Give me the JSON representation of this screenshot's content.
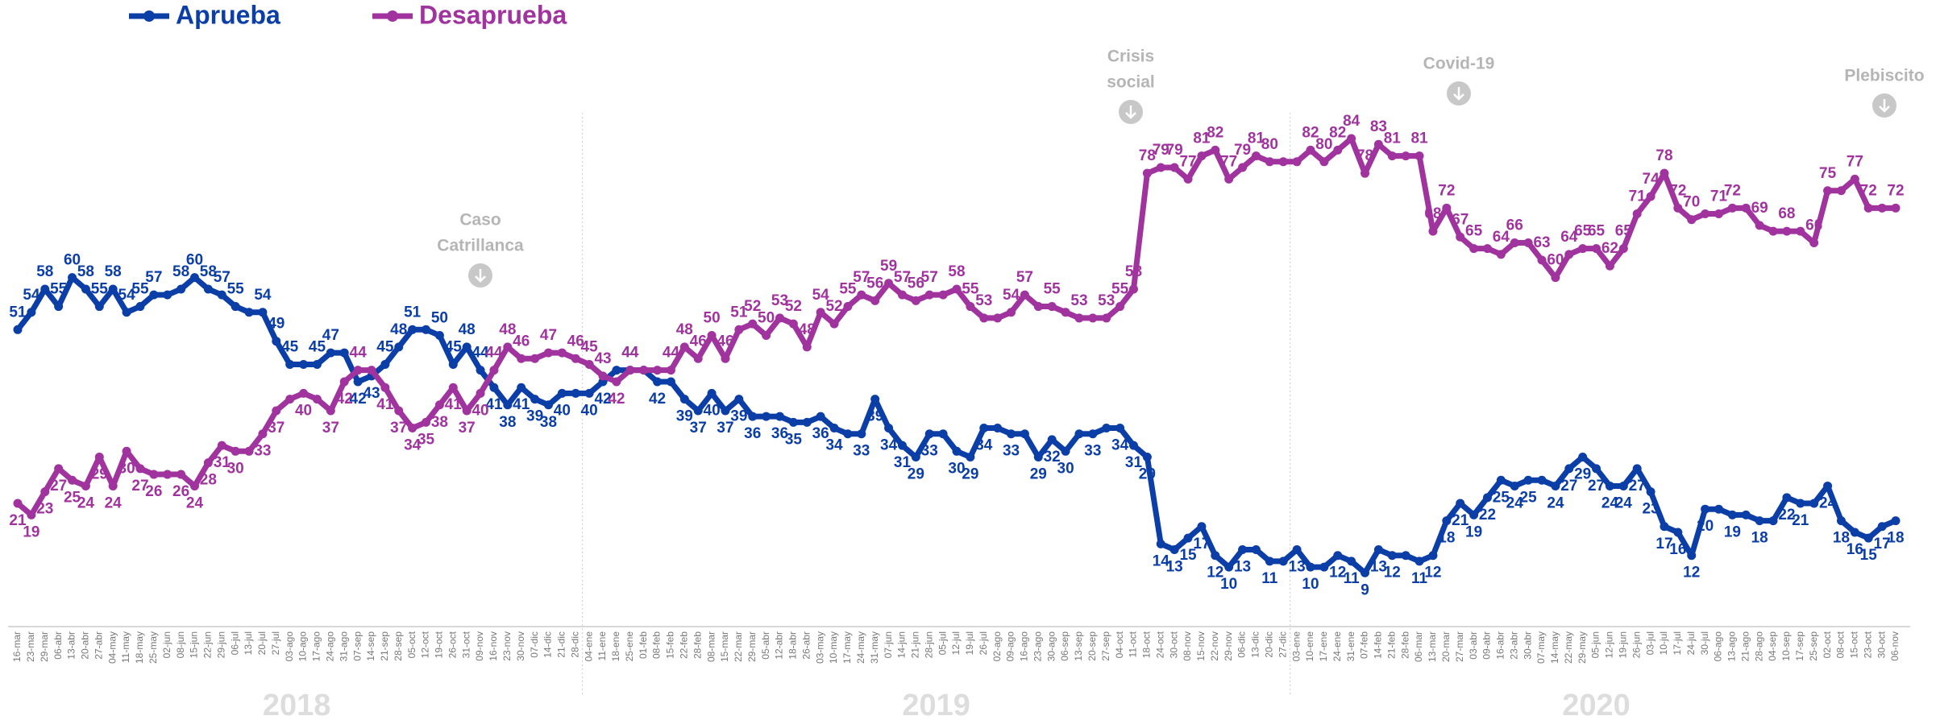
{
  "chart_data": {
    "type": "line",
    "categories": [
      "16-mar",
      "23-mar",
      "29-mar",
      "06-abr",
      "13-abr",
      "20-abr",
      "27-abr",
      "04-may",
      "11-may",
      "18-may",
      "25-may",
      "02-jun",
      "08-jun",
      "15-jun",
      "22-jun",
      "29-jun",
      "06-jul",
      "13-jul",
      "20-jul",
      "27-jul",
      "03-ago",
      "10-ago",
      "17-ago",
      "24-ago",
      "31-ago",
      "07-sep",
      "14-sep",
      "21-sep",
      "28-sep",
      "05-oct",
      "12-oct",
      "19-oct",
      "26-oct",
      "31-oct",
      "09-nov",
      "16-nov",
      "23-nov",
      "30-nov",
      "07-dic",
      "14-dic",
      "21-dic",
      "28-dic",
      "04-ene",
      "11-ene",
      "18-ene",
      "25-ene",
      "01-feb",
      "08-feb",
      "15-feb",
      "22-feb",
      "28-feb",
      "08-mar",
      "15-mar",
      "22-mar",
      "29-mar",
      "05-abr",
      "12-abr",
      "18-abr",
      "26-abr",
      "03-may",
      "10-may",
      "17-may",
      "24-may",
      "31-may",
      "07-jun",
      "14-jun",
      "21-jun",
      "28-jun",
      "05-jul",
      "12-jul",
      "19-jul",
      "26-jul",
      "02-ago",
      "09-ago",
      "16-ago",
      "23-ago",
      "30-ago",
      "06-sep",
      "13-sep",
      "20-sep",
      "27-sep",
      "04-oct",
      "11-oct",
      "18-oct",
      "24-oct",
      "30-oct",
      "08-nov",
      "15-nov",
      "22-nov",
      "29-nov",
      "06-dic",
      "13-dic",
      "20-dic",
      "27-dic",
      "03-ene",
      "10-ene",
      "17-ene",
      "24-ene",
      "31-ene",
      "07-feb",
      "14-feb",
      "21-feb",
      "28-feb",
      "06-mar",
      "13-mar",
      "20-mar",
      "27-mar",
      "03-abr",
      "09-abr",
      "16-abr",
      "23-abr",
      "30-abr",
      "07-may",
      "14-may",
      "22-may",
      "29-may",
      "05-jun",
      "12-jun",
      "19-jun",
      "26-jun",
      "03-jul",
      "10-jul",
      "17-jul",
      "24-jul",
      "30-jul",
      "06-ago",
      "13-ago",
      "21-ago",
      "28-ago",
      "04-sep",
      "10-sep",
      "17-sep",
      "25-sep",
      "02-oct",
      "08-oct",
      "15-oct",
      "23-oct",
      "30-oct",
      "06-nov"
    ],
    "years": [
      "2018",
      "2019",
      "2020"
    ],
    "ylim": [
      0,
      100
    ],
    "annotations": [
      {
        "lines": [
          "Caso",
          "Catrillanca"
        ]
      },
      {
        "lines": [
          "Crisis",
          "social"
        ]
      },
      {
        "lines": [
          "Covid-19"
        ]
      },
      {
        "lines": [
          "Plebiscito"
        ]
      }
    ],
    "series": [
      {
        "name": "Aprueba",
        "color": "#0b3ea6",
        "values": [
          51,
          54,
          58,
          55,
          60,
          58,
          55,
          58,
          54,
          55,
          57,
          57,
          58,
          60,
          58,
          57,
          55,
          54,
          54,
          49,
          45,
          45,
          45,
          47,
          47,
          42,
          43,
          45,
          48,
          51,
          51,
          50,
          45,
          48,
          44,
          41,
          38,
          41,
          39,
          38,
          40,
          40,
          40,
          42,
          44,
          44,
          44,
          42,
          42,
          39,
          37,
          40,
          37,
          39,
          36,
          36,
          36,
          35,
          35,
          36,
          34,
          33,
          33,
          39,
          34,
          31,
          29,
          33,
          33,
          30,
          29,
          34,
          34,
          33,
          33,
          29,
          32,
          30,
          33,
          33,
          34,
          34,
          31,
          29,
          14,
          13,
          15,
          17,
          12,
          10,
          13,
          13,
          11,
          11,
          13,
          10,
          10,
          12,
          11,
          9,
          13,
          12,
          12,
          11,
          12,
          18,
          21,
          19,
          22,
          25,
          24,
          25,
          25,
          24,
          27,
          29,
          27,
          24,
          24,
          27,
          23,
          17,
          16,
          12,
          20,
          20,
          19,
          19,
          18,
          18,
          22,
          21,
          21,
          24,
          18,
          16,
          15,
          17,
          18
        ],
        "value_labels": [
          "51",
          "54",
          "58",
          "55",
          "60",
          "58",
          "55",
          "58",
          "54",
          "55",
          "57",
          null,
          "58",
          "60",
          "58",
          "57",
          "55",
          null,
          "54",
          "49",
          "45",
          null,
          "45",
          "47",
          null,
          "42",
          "43",
          "45",
          "48",
          "51",
          null,
          "50",
          "45",
          "48",
          "44",
          "41",
          "38",
          "41",
          "39",
          "38",
          "40",
          null,
          "40",
          "42",
          null,
          "44",
          null,
          "42",
          null,
          "39",
          "37",
          "40",
          "37",
          "39",
          "36",
          null,
          "36",
          "35",
          null,
          "36",
          "34",
          null,
          "33",
          "39",
          "34",
          "31",
          "29",
          "33",
          null,
          "30",
          "29",
          "34",
          null,
          "33",
          null,
          "29",
          "32",
          "30",
          null,
          "33",
          null,
          "34",
          "31",
          "29",
          "14",
          "13",
          "15",
          "17",
          "12",
          "10",
          "13",
          null,
          "11",
          null,
          "13",
          "10",
          null,
          "12",
          "11",
          "9",
          "13",
          "12",
          null,
          "11",
          "12",
          "18",
          "21",
          "19",
          "22",
          "25",
          "24",
          "25",
          null,
          "24",
          "27",
          "29",
          "27",
          "24",
          "24",
          "27",
          "23",
          "17",
          "16",
          "12",
          "20",
          null,
          "19",
          null,
          "18",
          null,
          "22",
          "21",
          null,
          "24",
          "18",
          "16",
          "15",
          "17",
          "18"
        ]
      },
      {
        "name": "Desaprueba",
        "color": "#a0339e",
        "values": [
          21,
          19,
          23,
          27,
          25,
          24,
          29,
          24,
          30,
          27,
          26,
          26,
          26,
          24,
          28,
          31,
          30,
          30,
          33,
          37,
          39,
          40,
          39,
          37,
          42,
          44,
          44,
          41,
          37,
          34,
          35,
          38,
          41,
          37,
          40,
          44,
          48,
          46,
          46,
          47,
          47,
          46,
          45,
          43,
          42,
          44,
          44,
          44,
          44,
          48,
          46,
          50,
          46,
          51,
          52,
          50,
          53,
          52,
          48,
          54,
          52,
          55,
          57,
          56,
          59,
          57,
          56,
          57,
          57,
          58,
          55,
          53,
          53,
          54,
          57,
          55,
          55,
          54,
          53,
          53,
          53,
          55,
          58,
          78,
          79,
          79,
          77,
          81,
          82,
          77,
          79,
          81,
          80,
          80,
          80,
          82,
          80,
          82,
          84,
          78,
          83,
          81,
          81,
          81,
          68,
          72,
          67,
          65,
          65,
          64,
          66,
          66,
          63,
          60,
          64,
          65,
          65,
          62,
          65,
          71,
          74,
          78,
          72,
          70,
          71,
          71,
          72,
          72,
          69,
          68,
          68,
          68,
          66,
          75,
          75,
          77,
          72,
          72,
          72
        ],
        "value_labels": [
          "21",
          "19",
          "23",
          "27",
          "25",
          "24",
          "29",
          "24",
          "30",
          "27",
          "26",
          null,
          "26",
          "24",
          "28",
          "31",
          "30",
          null,
          "33",
          "37",
          null,
          "40",
          null,
          "37",
          "42",
          "44",
          null,
          "41",
          "37",
          "34",
          "35",
          "38",
          "41",
          "37",
          "40",
          "44",
          "48",
          "46",
          null,
          "47",
          null,
          "46",
          "45",
          "43",
          "42",
          "44",
          null,
          null,
          "44",
          "48",
          "46",
          "50",
          "46",
          "51",
          "52",
          "50",
          "53",
          "52",
          "48",
          "54",
          "52",
          "55",
          "57",
          "56",
          "59",
          "57",
          "56",
          "57",
          null,
          "58",
          "55",
          "53",
          null,
          "54",
          "57",
          null,
          "55",
          null,
          "53",
          null,
          "53",
          "55",
          "58",
          "78",
          "79",
          "79",
          "77",
          "81",
          "82",
          "77",
          "79",
          "81",
          "80",
          null,
          null,
          "82",
          "80",
          "82",
          "84",
          "78",
          "83",
          "81",
          null,
          "81",
          "68",
          "72",
          "67",
          "65",
          null,
          "64",
          "66",
          null,
          "63",
          "60",
          "64",
          "65",
          "65",
          "62",
          "65",
          "71",
          "74",
          "78",
          "72",
          "70",
          null,
          "71",
          "72",
          null,
          "69",
          null,
          "68",
          null,
          "66",
          "75",
          null,
          "77",
          "72",
          null,
          "72"
        ]
      }
    ]
  }
}
